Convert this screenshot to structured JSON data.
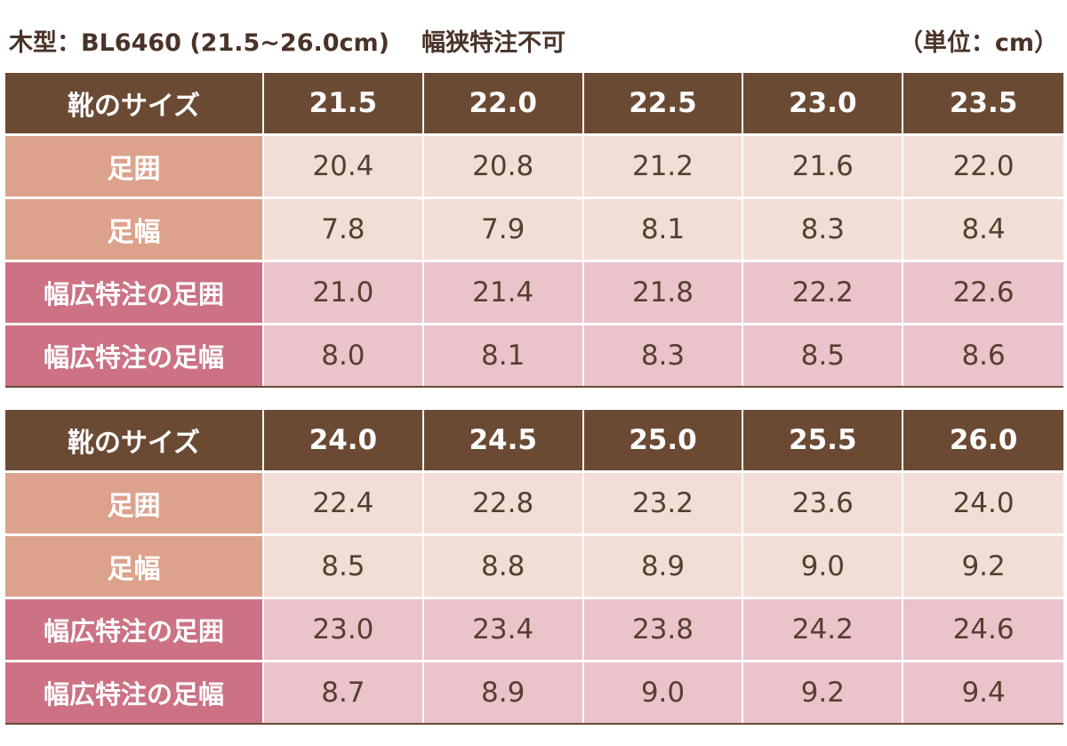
{
  "title": "木型：BL6460 (21.5~26.0cm)",
  "note": "幅狭特注不可",
  "unit": "（単位：cm）",
  "row_labels": {
    "size": "靴のサイズ",
    "girth": "足囲",
    "width": "足幅",
    "wide_girth": "幅広特注の足囲",
    "wide_width": "幅広特注の足幅"
  },
  "tables": [
    {
      "sizes": [
        "21.5",
        "22.0",
        "22.5",
        "23.0",
        "23.5"
      ],
      "girth": [
        "20.4",
        "20.8",
        "21.2",
        "21.6",
        "22.0"
      ],
      "width": [
        "7.8",
        "7.9",
        "8.1",
        "8.3",
        "8.4"
      ],
      "wide_girth": [
        "21.0",
        "21.4",
        "21.8",
        "22.2",
        "22.6"
      ],
      "wide_width": [
        "8.0",
        "8.1",
        "8.3",
        "8.5",
        "8.6"
      ]
    },
    {
      "sizes": [
        "24.0",
        "24.5",
        "25.0",
        "25.5",
        "26.0"
      ],
      "girth": [
        "22.4",
        "22.8",
        "23.2",
        "23.6",
        "24.0"
      ],
      "width": [
        "8.5",
        "8.8",
        "8.9",
        "9.0",
        "9.2"
      ],
      "wide_girth": [
        "23.0",
        "23.4",
        "23.8",
        "24.2",
        "24.6"
      ],
      "wide_width": [
        "8.7",
        "8.9",
        "9.0",
        "9.2",
        "9.4"
      ]
    }
  ],
  "colors": {
    "header": "#6b4a34",
    "label_light": "#dca28c",
    "cell_light": "#f3ded7",
    "label_pink": "#cc7284",
    "cell_pink": "#ebc3cb"
  }
}
